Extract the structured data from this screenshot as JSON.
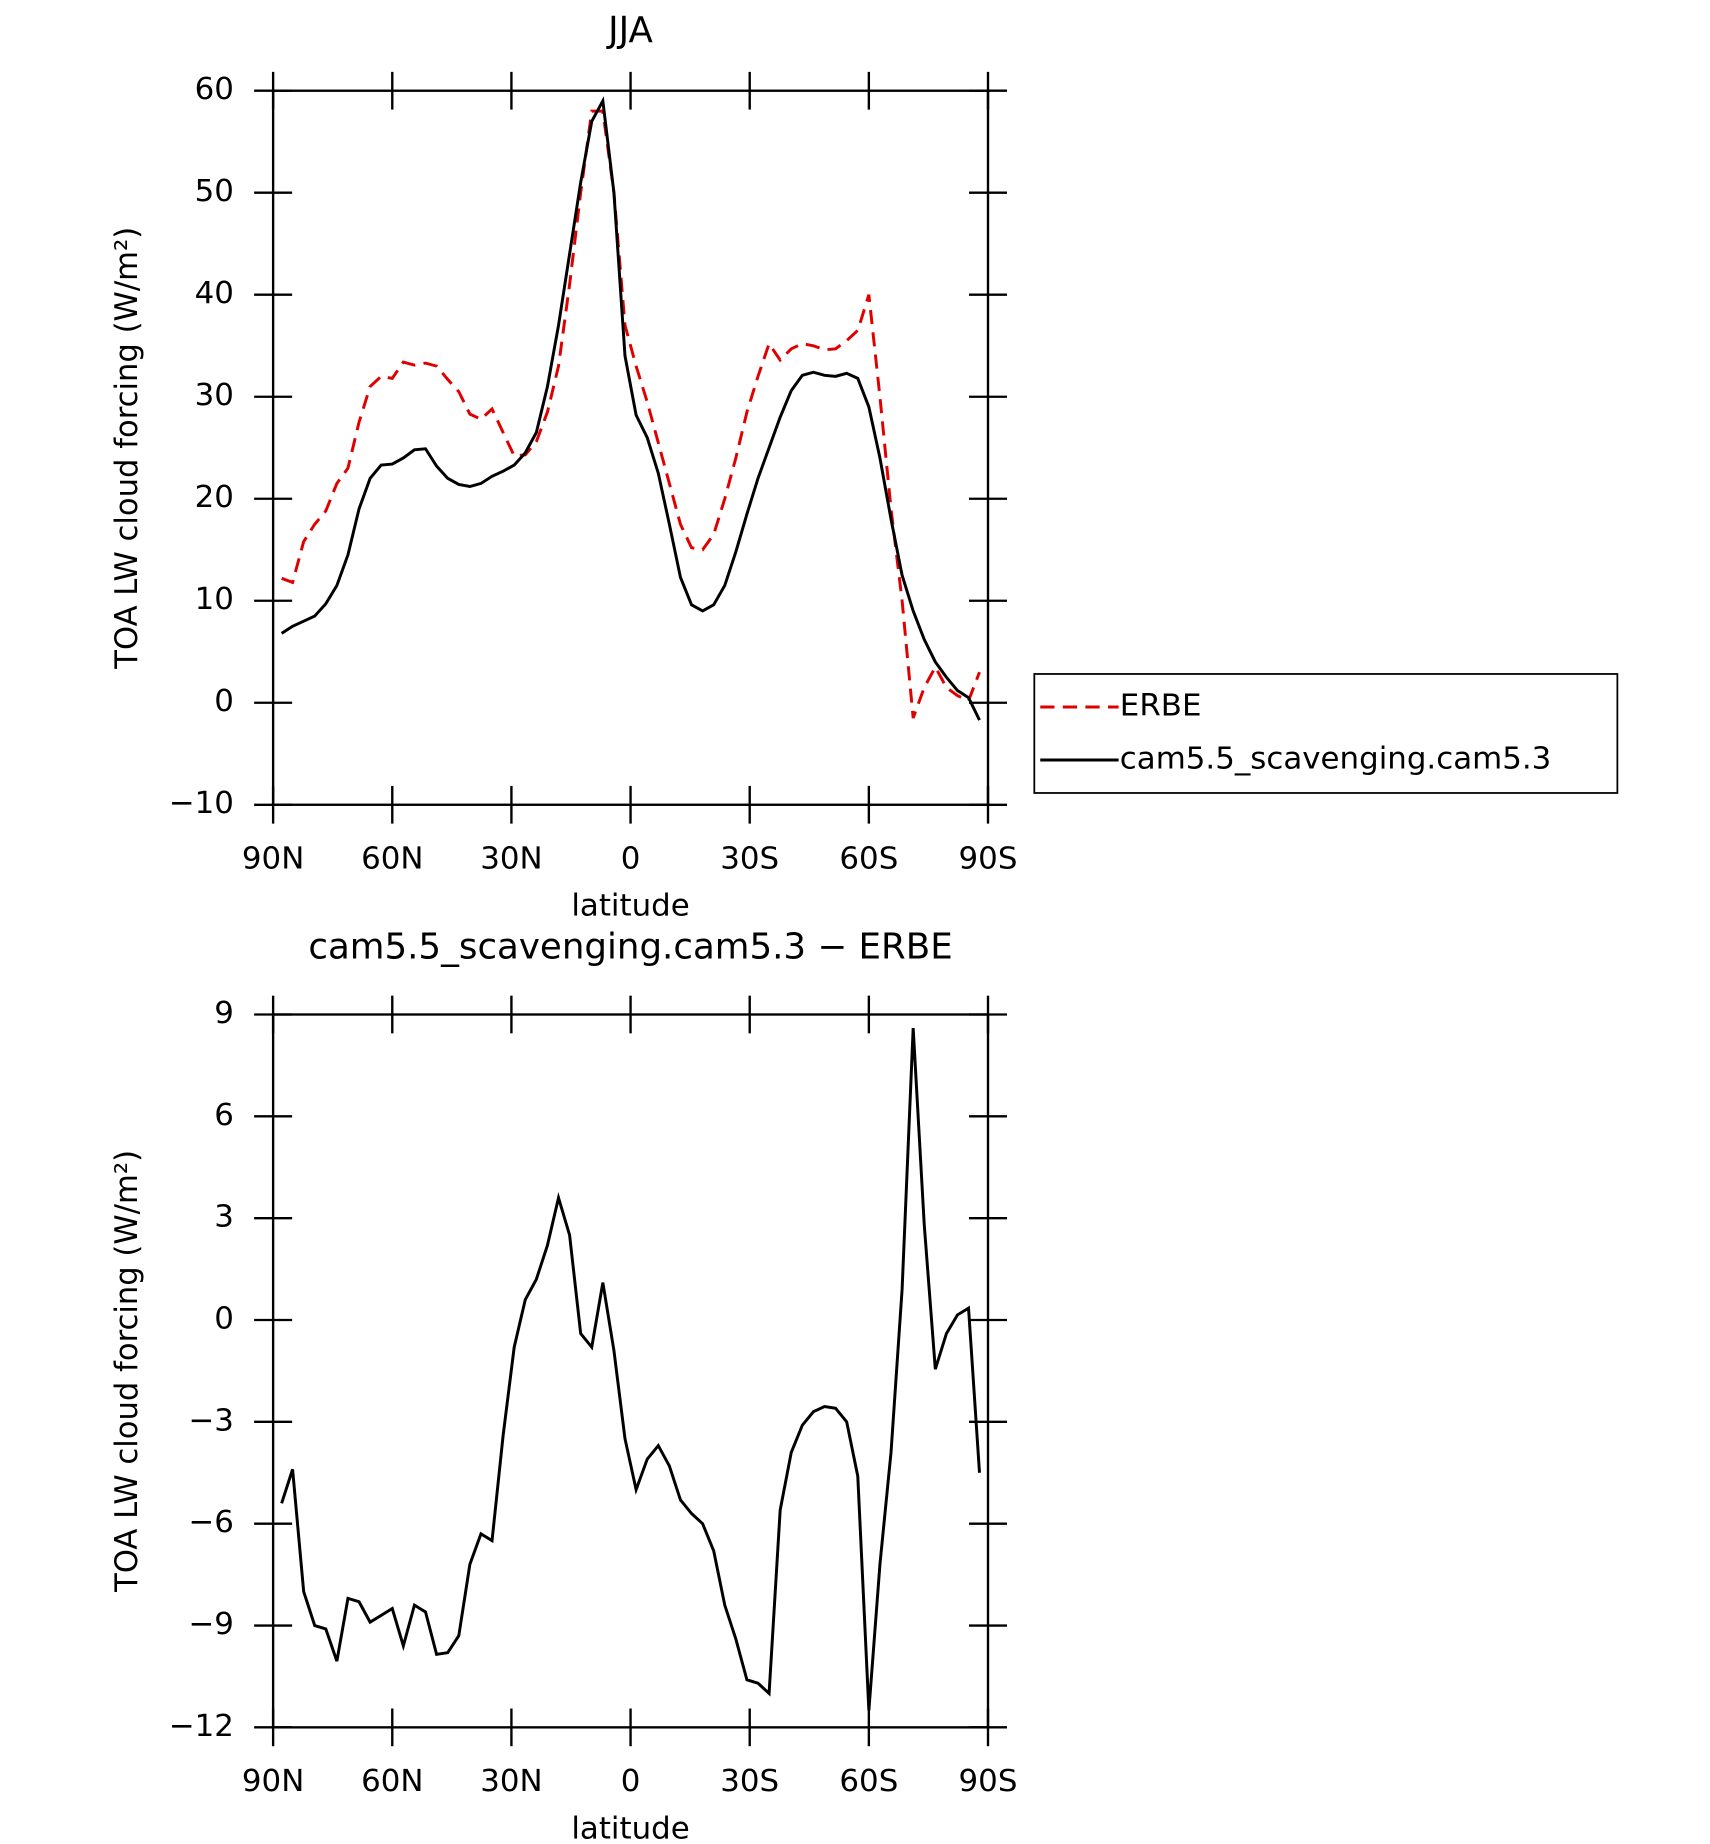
{
  "chart_data": [
    {
      "type": "line",
      "title": "JJA",
      "xlabel": "latitude",
      "ylabel": "TOA LW cloud forcing (W/m²)",
      "x": [
        87.86,
        85.1,
        82.31,
        79.53,
        76.74,
        73.95,
        71.16,
        68.37,
        65.58,
        62.79,
        60.0,
        57.21,
        54.42,
        51.63,
        48.84,
        46.04,
        43.25,
        40.46,
        37.67,
        34.88,
        32.09,
        29.3,
        26.51,
        23.72,
        20.93,
        18.14,
        15.35,
        12.56,
        9.77,
        6.98,
        4.19,
        1.4,
        -1.4,
        -4.19,
        -6.98,
        -9.77,
        -12.56,
        -15.35,
        -18.14,
        -20.93,
        -23.72,
        -26.51,
        -29.3,
        -32.09,
        -34.88,
        -37.67,
        -40.46,
        -43.25,
        -46.04,
        -48.84,
        -51.63,
        -54.42,
        -57.21,
        -60.0,
        -62.79,
        -65.58,
        -68.37,
        -71.16,
        -73.95,
        -76.74,
        -79.53,
        -82.31,
        -85.1,
        -87.86
      ],
      "series": [
        {
          "name": "ERBE",
          "color": "#e00000",
          "dash": true,
          "values": [
            12.2,
            11.8,
            15.8,
            17.5,
            18.8,
            21.5,
            23,
            27.5,
            31,
            32,
            31.8,
            33.4,
            33.1,
            33.3,
            33,
            31.7,
            30.5,
            28.3,
            27.8,
            28.8,
            26.5,
            24.2,
            24.3,
            25.6,
            28.5,
            33,
            41,
            50,
            58,
            58,
            50,
            37,
            33,
            29.5,
            25.5,
            21.5,
            17.5,
            15.2,
            15,
            16.5,
            20,
            24,
            28.5,
            32,
            35.2,
            33.6,
            34.7,
            35.2,
            35,
            34.6,
            34.7,
            35.5,
            36.5,
            40,
            30,
            19,
            10,
            -1.5,
            1.5,
            3.5,
            1.5,
            0.7,
            0.2,
            3
          ]
        },
        {
          "name": "cam5.5_scavenging.cam5.3",
          "color": "#000000",
          "dash": false,
          "values": [
            6.8,
            7.5,
            8,
            8.5,
            9.7,
            11.5,
            14.5,
            19,
            22,
            23.3,
            23.4,
            24,
            24.8,
            24.9,
            23.2,
            22,
            21.4,
            21.2,
            21.5,
            22.2,
            22.7,
            23.3,
            24.5,
            26.5,
            31,
            37,
            44,
            51,
            57,
            59,
            50,
            34,
            28.2,
            26,
            22.5,
            17.5,
            12.3,
            9.6,
            9,
            9.6,
            11.5,
            14.8,
            18.5,
            22,
            25,
            28,
            30.6,
            32.1,
            32.4,
            32.1,
            32,
            32.3,
            31.8,
            29,
            24,
            18,
            12.5,
            9,
            6.2,
            4,
            2.5,
            1.2,
            0.5,
            -1.7
          ]
        }
      ],
      "xlim": [
        90,
        -90
      ],
      "xticks": [
        {
          "value": 90,
          "label": "90N"
        },
        {
          "value": 60,
          "label": "60N"
        },
        {
          "value": 30,
          "label": "30N"
        },
        0,
        {
          "value": -30,
          "label": "30S"
        },
        {
          "value": -60,
          "label": "60S"
        },
        {
          "value": -90,
          "label": "90S"
        }
      ],
      "ylim": [
        -10,
        60
      ],
      "yticks": [
        {
          "value": -10,
          "label": "−10"
        },
        0,
        10,
        20,
        30,
        40,
        50,
        60
      ],
      "legend": "right"
    },
    {
      "type": "line",
      "title": "cam5.5_scavenging.cam5.3 − ERBE",
      "xlabel": "latitude",
      "ylabel": "TOA LW cloud forcing (W/m²)",
      "x": [
        87.86,
        85.1,
        82.31,
        79.53,
        76.74,
        73.95,
        71.16,
        68.37,
        65.58,
        62.79,
        60.0,
        57.21,
        54.42,
        51.63,
        48.84,
        46.04,
        43.25,
        40.46,
        37.67,
        34.88,
        32.09,
        29.3,
        26.51,
        23.72,
        20.93,
        18.14,
        15.35,
        12.56,
        9.77,
        6.98,
        4.19,
        1.4,
        -1.4,
        -4.19,
        -6.98,
        -9.77,
        -12.56,
        -15.35,
        -18.14,
        -20.93,
        -23.72,
        -26.51,
        -29.3,
        -32.09,
        -34.88,
        -37.67,
        -40.46,
        -43.25,
        -46.04,
        -48.84,
        -51.63,
        -54.42,
        -57.21,
        -60.0,
        -62.79,
        -65.58,
        -68.37,
        -71.16,
        -73.95,
        -76.74,
        -79.53,
        -82.31,
        -85.1,
        -87.86
      ],
      "series": [
        {
          "color": "#000000",
          "dash": false,
          "values": [
            -5.4,
            -4.4,
            -8,
            -9,
            -9.1,
            -10.05,
            -8.2,
            -8.3,
            -8.9,
            -8.7,
            -8.5,
            -9.6,
            -8.4,
            -8.6,
            -9.85,
            -9.8,
            -9.3,
            -7.2,
            -6.3,
            -6.5,
            -3.4,
            -0.8,
            0.6,
            1.2,
            2.2,
            3.6,
            2.5,
            -0.4,
            -0.8,
            1.1,
            -0.9,
            -3.5,
            -5,
            -4.1,
            -3.7,
            -4.3,
            -5.3,
            -5.7,
            -6,
            -6.8,
            -8.4,
            -9.4,
            -10.6,
            -10.7,
            -11,
            -5.6,
            -3.9,
            -3.1,
            -2.7,
            -2.55,
            -2.6,
            -3,
            -4.6,
            -11.5,
            -7.2,
            -3.9,
            0.9,
            8.6,
            2.8,
            -1.45,
            -0.4,
            0.15,
            0.35,
            -4.5
          ]
        }
      ],
      "xlim": [
        90,
        -90
      ],
      "xticks": [
        {
          "value": 90,
          "label": "90N"
        },
        {
          "value": 60,
          "label": "60N"
        },
        {
          "value": 30,
          "label": "30N"
        },
        0,
        {
          "value": -30,
          "label": "30S"
        },
        {
          "value": -60,
          "label": "60S"
        },
        {
          "value": -90,
          "label": "90S"
        }
      ],
      "ylim": [
        -12,
        9
      ],
      "yticks": [
        {
          "value": -12,
          "label": "−12"
        },
        {
          "value": -9,
          "label": "−9"
        },
        {
          "value": -6,
          "label": "−6"
        },
        {
          "value": -3,
          "label": "−3"
        },
        0,
        3,
        6,
        9
      ]
    }
  ]
}
